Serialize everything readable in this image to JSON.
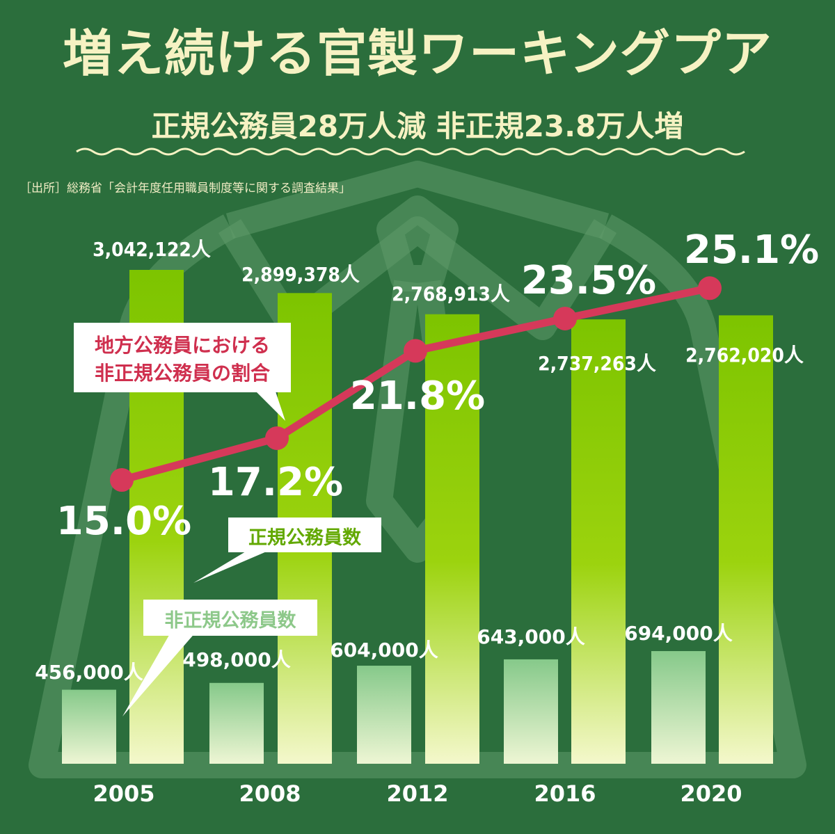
{
  "header": {
    "title": "増え続ける官製ワーキングプア",
    "subtitle": "正規公務員28万人減 非正規23.8万人増",
    "source": "［出所］総務省「会計年度任用職員制度等に関する調査結果」"
  },
  "colors": {
    "background": "#2b6e3c",
    "regular_bar_top": "#7dc400",
    "regular_bar_bottom": "#f2f7c6",
    "nonregular_bar_top": "#86c98a",
    "nonregular_bar_bottom": "#eef6d4",
    "ratio_line": "#d6395a",
    "cream_text": "#f6f2c3"
  },
  "chart_data": {
    "type": "bar",
    "categories": [
      "2005",
      "2008",
      "2012",
      "2016",
      "2020"
    ],
    "series": [
      {
        "name": "正規公務員数",
        "values": [
          3042122,
          2899378,
          2768913,
          2737263,
          2762020
        ],
        "labels": [
          "3,042,122人",
          "2,899,378人",
          "2,768,913人",
          "2,737,263人",
          "2,762,020人"
        ]
      },
      {
        "name": "非正規公務員数",
        "values": [
          456000,
          498000,
          604000,
          643000,
          694000
        ],
        "labels": [
          "456,000人",
          "498,000人",
          "604,000人",
          "643,000人",
          "694,000人"
        ]
      },
      {
        "name": "地方公務員における非正規公務員の割合",
        "type": "line",
        "values": [
          15.0,
          17.2,
          21.8,
          23.5,
          25.1
        ],
        "labels": [
          "15.0%",
          "17.2%",
          "21.8%",
          "23.5%",
          "25.1%"
        ]
      }
    ],
    "callouts": {
      "ratio": [
        "地方公務員における",
        "非正規公務員の割合"
      ],
      "regular": "正規公務員数",
      "nonregular": "非正規公務員数"
    },
    "title": "増え続ける官製ワーキングプア",
    "subtitle": "正規公務員28万人減 非正規23.8万人増"
  }
}
